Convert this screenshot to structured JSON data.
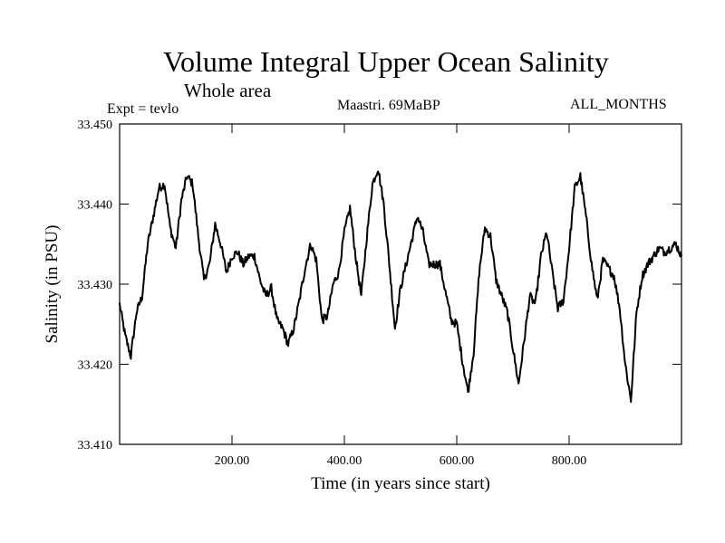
{
  "header": {
    "title": "Volume Integral Upper Ocean Salinity",
    "subtitle": "Whole area",
    "experiment": "Expt = tevlo",
    "period": "Maastri.  69MaBP",
    "months": "ALL_MONTHS"
  },
  "chart_data": {
    "type": "line",
    "title": "Volume Integral Upper Ocean Salinity",
    "xlabel": "Time (in years since start)",
    "ylabel": "Salinity (in PSU)",
    "xlim": [
      0,
      1000
    ],
    "ylim": [
      33.41,
      33.45
    ],
    "x_ticks": [
      200,
      400,
      600,
      800
    ],
    "x_tick_labels": [
      "200.00",
      "400.00",
      "600.00",
      "800.00"
    ],
    "y_ticks": [
      33.41,
      33.42,
      33.43,
      33.44,
      33.45
    ],
    "y_tick_labels": [
      "33.410",
      "33.420",
      "33.430",
      "33.440",
      "33.450"
    ],
    "grid": false,
    "series": [
      {
        "name": "Salinity",
        "x": [
          0,
          10,
          20,
          30,
          40,
          50,
          60,
          70,
          80,
          90,
          100,
          110,
          120,
          130,
          140,
          150,
          160,
          170,
          180,
          190,
          200,
          210,
          220,
          230,
          240,
          250,
          260,
          270,
          280,
          290,
          300,
          310,
          320,
          330,
          340,
          350,
          360,
          370,
          380,
          390,
          400,
          410,
          420,
          430,
          440,
          450,
          460,
          470,
          480,
          490,
          500,
          510,
          520,
          530,
          540,
          550,
          560,
          570,
          580,
          590,
          600,
          610,
          620,
          630,
          640,
          650,
          660,
          670,
          680,
          690,
          700,
          710,
          720,
          730,
          740,
          750,
          760,
          770,
          780,
          790,
          800,
          810,
          820,
          830,
          840,
          850,
          860,
          870,
          880,
          890,
          900,
          910,
          920,
          930,
          940,
          950,
          960,
          970,
          980,
          990,
          1000
        ],
        "values": [
          33.4275,
          33.4235,
          33.421,
          33.4265,
          33.4285,
          33.435,
          33.4385,
          33.442,
          33.4425,
          33.437,
          33.4345,
          33.4405,
          33.4435,
          33.4425,
          33.436,
          33.4305,
          33.4325,
          33.4375,
          33.435,
          33.4315,
          33.4335,
          33.434,
          33.4325,
          33.4335,
          33.4335,
          33.4305,
          33.4285,
          33.4295,
          33.4255,
          33.4245,
          33.4225,
          33.4245,
          33.428,
          33.432,
          33.435,
          33.433,
          33.4255,
          33.426,
          33.43,
          33.4315,
          33.4365,
          33.4395,
          33.4335,
          33.4285,
          33.436,
          33.4425,
          33.4445,
          33.44,
          33.4325,
          33.4245,
          33.4295,
          33.4325,
          33.4355,
          33.4385,
          33.4365,
          33.4325,
          33.4325,
          33.4325,
          33.429,
          33.4255,
          33.425,
          33.4205,
          33.4165,
          33.4215,
          33.4315,
          33.437,
          33.436,
          33.4305,
          33.4285,
          33.4265,
          33.422,
          33.4175,
          33.423,
          33.4285,
          33.4275,
          33.4335,
          33.4365,
          33.4315,
          33.427,
          33.428,
          33.4345,
          33.442,
          33.4435,
          33.4385,
          33.4325,
          33.428,
          33.433,
          33.432,
          33.431,
          33.427,
          33.42,
          33.4155,
          33.4265,
          33.431,
          33.4325,
          33.4335,
          33.4345,
          33.434,
          33.4345,
          33.435,
          33.4335
        ]
      }
    ]
  }
}
